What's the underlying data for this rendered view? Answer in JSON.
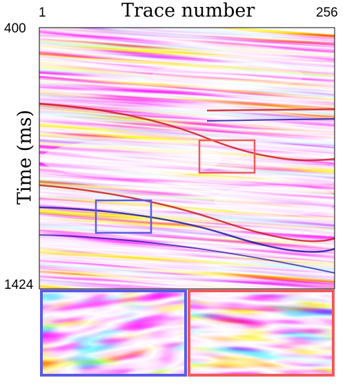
{
  "figure": {
    "x_title": "Trace number",
    "y_title": "Time (ms)",
    "x_start": "1",
    "x_end": "256",
    "y_start": "400",
    "y_end": "1424"
  },
  "colors": {
    "positive": "#d01818",
    "negative": "#1818b0",
    "zoom_blue": "#5a5ae8",
    "zoom_red": "#f05a5a"
  },
  "insets": [
    {
      "name": "blue-region",
      "color": "zoom_blue"
    },
    {
      "name": "red-region",
      "color": "zoom_red"
    }
  ]
}
